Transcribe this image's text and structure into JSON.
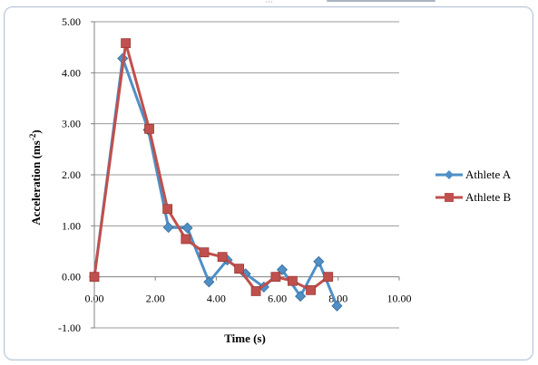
{
  "chart_data": {
    "type": "line",
    "xlabel": "Time (s)",
    "ylabel": "Acceleration (ms",
    "ylabel_sup": "-2",
    "ylabel_close": ")",
    "xlim": [
      0,
      10
    ],
    "ylim": [
      -1,
      5
    ],
    "x_ticks": [
      "0.00",
      "2.00",
      "4.00",
      "6.00",
      "8.00",
      "10.00"
    ],
    "y_ticks": [
      "5.00",
      "4.00",
      "3.00",
      "2.00",
      "1.00",
      "0.00",
      "-1.00"
    ],
    "grid": "horizontal",
    "legend_position": "right",
    "series": [
      {
        "name": "Athlete A",
        "color": "#4f8fc6",
        "marker": "diamond",
        "x": [
          0.0,
          0.93,
          1.77,
          2.43,
          3.05,
          3.76,
          4.36,
          4.96,
          5.56,
          6.16,
          6.76,
          7.36,
          7.96
        ],
        "y": [
          0.0,
          4.28,
          2.88,
          0.97,
          0.96,
          -0.1,
          0.33,
          0.06,
          -0.2,
          0.14,
          -0.38,
          0.3,
          -0.57
        ]
      },
      {
        "name": "Athlete B",
        "color": "#c0504d",
        "marker": "square",
        "x": [
          0.0,
          1.03,
          1.8,
          2.4,
          3.0,
          3.6,
          4.2,
          4.75,
          5.3,
          5.95,
          6.5,
          7.1,
          7.67
        ],
        "y": [
          0.0,
          4.58,
          2.9,
          1.33,
          0.74,
          0.48,
          0.39,
          0.16,
          -0.28,
          0.0,
          -0.08,
          -0.26,
          0.0
        ]
      }
    ]
  }
}
